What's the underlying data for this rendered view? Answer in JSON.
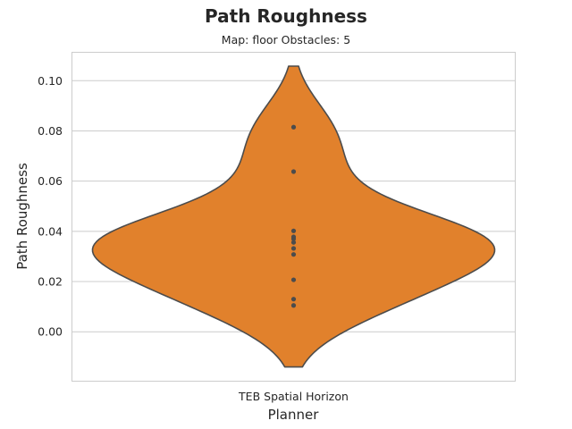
{
  "chart_data": {
    "type": "violin",
    "title": "Path Roughness",
    "subtitle": "Map: floor Obstacles: 5",
    "xlabel": "Planner",
    "ylabel": "Path Roughness",
    "categories": [
      "TEB Spatial Horizon"
    ],
    "ylim": [
      -0.0195,
      0.1115
    ],
    "yticks": [
      0.0,
      0.02,
      0.04,
      0.06,
      0.08,
      0.1
    ],
    "ytick_labels": [
      "0.00",
      "0.02",
      "0.04",
      "0.06",
      "0.08",
      "0.10"
    ],
    "grid": "horizontal",
    "violin_color": "#e1812c",
    "edge_color": "#4c4c4c",
    "series": [
      {
        "category": "TEB Spatial Horizon",
        "points": [
          0.0815,
          0.0638,
          0.0402,
          0.0378,
          0.037,
          0.0356,
          0.0332,
          0.0308,
          0.0207,
          0.013,
          0.0105
        ],
        "range": [
          -0.014,
          0.1058
        ]
      }
    ]
  }
}
